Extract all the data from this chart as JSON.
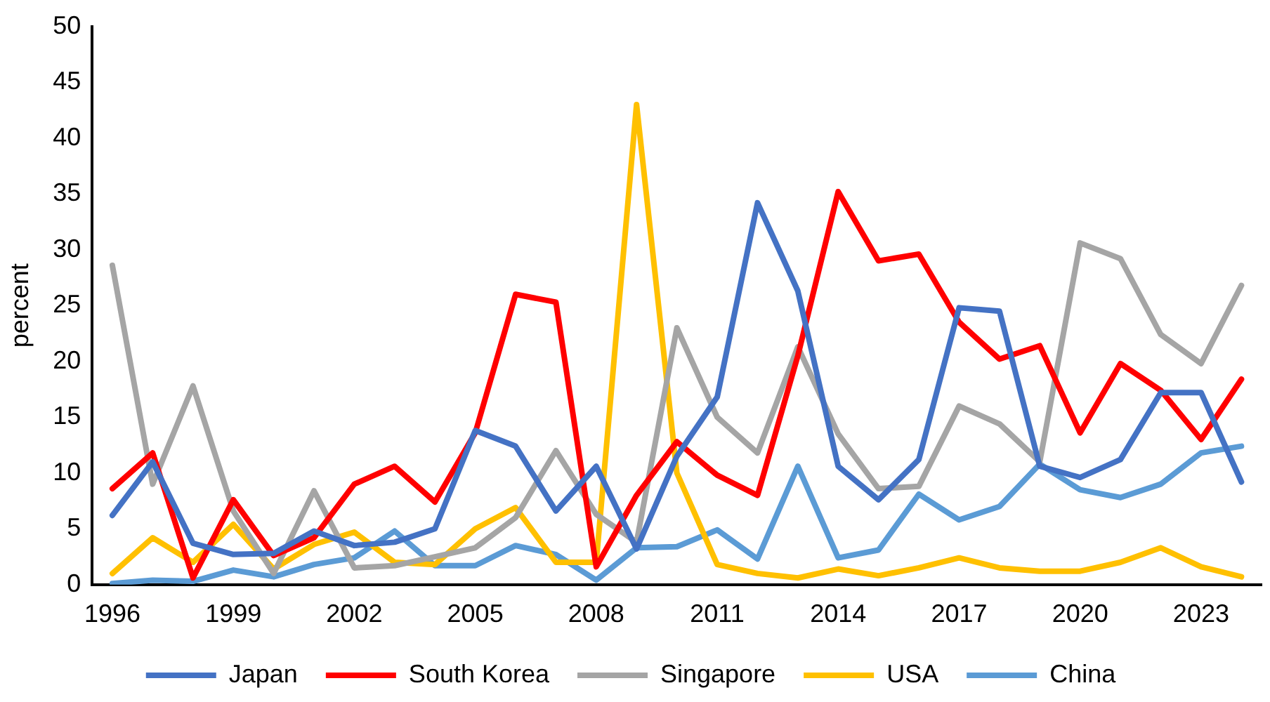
{
  "chart_data": {
    "type": "line",
    "ylabel": "percent",
    "categories": [
      "1996",
      null,
      null,
      "1999",
      null,
      null,
      "2002",
      null,
      null,
      "2005",
      null,
      null,
      "2008",
      null,
      null,
      "2011",
      null,
      null,
      "2014",
      null,
      null,
      "2017",
      null,
      null,
      "2020",
      null,
      null,
      "2023",
      null
    ],
    "series": [
      {
        "name": "Japan",
        "color": "#4472c4",
        "values": [
          6.2,
          11,
          3.7,
          2.7,
          2.8,
          4.8,
          3.5,
          3.8,
          5,
          13.8,
          12.4,
          6.6,
          10.6,
          3.2,
          11.5,
          16.8,
          34.2,
          26.3,
          10.6,
          7.6,
          11.2,
          24.8,
          24.5,
          10.6,
          9.6,
          11.2,
          17.2,
          17.2,
          9.2
        ]
      },
      {
        "name": "South Korea",
        "color": "#ff0000",
        "values": [
          8.6,
          11.8,
          0.6,
          7.6,
          2.6,
          4.2,
          9,
          10.6,
          7.4,
          13.6,
          26,
          25.3,
          1.6,
          8,
          12.8,
          9.8,
          8,
          20.5,
          35.2,
          29,
          29.6,
          23.5,
          20.2,
          21.4,
          13.6,
          19.8,
          17.4,
          13,
          18.4
        ]
      },
      {
        "name": "Singapore",
        "color": "#a5a5a5",
        "values": [
          28.6,
          9,
          17.8,
          6.6,
          1,
          8.4,
          1.5,
          1.7,
          2.5,
          3.3,
          6,
          12,
          6.3,
          3.8,
          23,
          15,
          11.8,
          21.3,
          13.5,
          8.6,
          8.8,
          16,
          14.4,
          11,
          30.6,
          29.2,
          22.4,
          19.8,
          26.8
        ]
      },
      {
        "name": "USA",
        "color": "#ffc000",
        "values": [
          1,
          4.2,
          2,
          5.4,
          1.4,
          3.6,
          4.7,
          2,
          1.8,
          5,
          6.9,
          2,
          2,
          43,
          10,
          1.8,
          1,
          0.6,
          1.4,
          0.8,
          1.5,
          2.4,
          1.5,
          1.2,
          1.2,
          2,
          3.3,
          1.6,
          0.7
        ]
      },
      {
        "name": "China",
        "color": "#5b9bd5",
        "values": [
          0.1,
          0.4,
          0.3,
          1.3,
          0.7,
          1.8,
          2.4,
          4.8,
          1.7,
          1.7,
          3.5,
          2.7,
          0.4,
          3.3,
          3.4,
          4.9,
          2.3,
          10.6,
          2.4,
          3.1,
          8.1,
          5.8,
          7,
          10.8,
          8.5,
          7.8,
          9,
          11.8,
          12.4
        ]
      }
    ],
    "ylim": [
      0,
      50
    ],
    "yticks": [
      0,
      5,
      10,
      15,
      20,
      25,
      30,
      35,
      40,
      45,
      50
    ],
    "grid": false,
    "legend": "bottom",
    "marker": "none",
    "line_style": "solid"
  }
}
